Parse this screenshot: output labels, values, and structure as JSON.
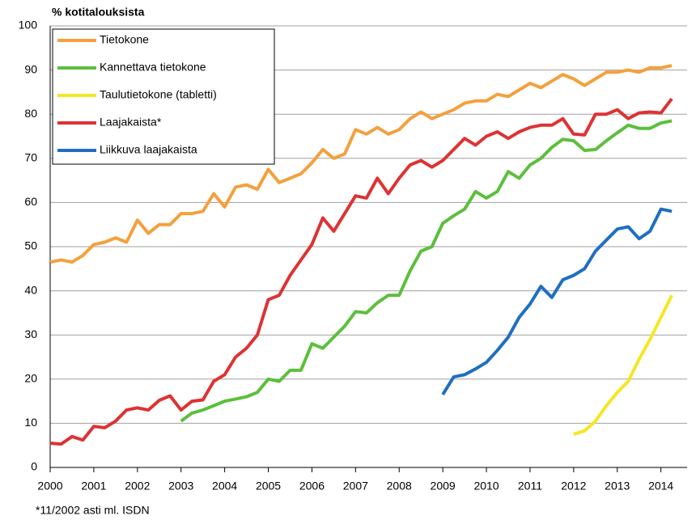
{
  "chart_data": {
    "type": "line",
    "y_label": "% kotitalouksista",
    "footnote": "*11/2002 asti ml. ISDN",
    "x": [
      2000,
      2000.25,
      2000.5,
      2000.75,
      2001,
      2001.25,
      2001.5,
      2001.75,
      2002,
      2002.25,
      2002.5,
      2002.75,
      2003,
      2003.25,
      2003.5,
      2003.75,
      2004,
      2004.25,
      2004.5,
      2004.75,
      2005,
      2005.25,
      2005.5,
      2005.75,
      2006,
      2006.25,
      2006.5,
      2006.75,
      2007,
      2007.25,
      2007.5,
      2007.75,
      2008,
      2008.25,
      2008.5,
      2008.75,
      2009,
      2009.25,
      2009.5,
      2009.75,
      2010,
      2010.25,
      2010.5,
      2010.75,
      2011,
      2011.25,
      2011.5,
      2011.75,
      2012,
      2012.25,
      2012.5,
      2012.75,
      2013,
      2013.25,
      2013.5,
      2013.75,
      2014,
      2014.25
    ],
    "series": [
      {
        "name": "Tietokone",
        "color": "#f4a03c",
        "values": [
          46.5,
          47,
          46.5,
          48,
          50.5,
          51,
          52,
          51,
          56,
          53,
          55,
          55,
          57.5,
          57.5,
          58,
          62,
          59,
          63.5,
          64,
          63,
          67.5,
          64.5,
          65.5,
          66.5,
          69,
          72,
          70,
          71,
          76.5,
          75.5,
          77,
          75.5,
          76.5,
          79,
          80.5,
          79,
          80,
          81,
          82.5,
          83,
          83,
          84.5,
          84,
          85.5,
          87,
          86,
          87.5,
          89,
          88,
          86.5,
          88,
          89.5,
          89.5,
          90,
          89.5,
          90.5,
          90.5,
          91
        ]
      },
      {
        "name": "Kannettava tietokone",
        "color": "#5cbf3c",
        "values": [
          null,
          null,
          null,
          null,
          null,
          null,
          null,
          null,
          null,
          null,
          null,
          null,
          10.5,
          12.3,
          13,
          14,
          15,
          15.5,
          16,
          17,
          20,
          19.5,
          22,
          22,
          28,
          27,
          29.5,
          32,
          35.3,
          35,
          37.3,
          39,
          39,
          44.5,
          49,
          50,
          55.3,
          57,
          58.5,
          62.5,
          61,
          62.5,
          67,
          65.5,
          68.5,
          70,
          72.5,
          74.3,
          74,
          71.8,
          72,
          74,
          75.8,
          77.5,
          76.8,
          76.8,
          78,
          78.5
        ]
      },
      {
        "name": "Taulutietokone (tabletti)",
        "color": "#f5e626",
        "values": [
          null,
          null,
          null,
          null,
          null,
          null,
          null,
          null,
          null,
          null,
          null,
          null,
          null,
          null,
          null,
          null,
          null,
          null,
          null,
          null,
          null,
          null,
          null,
          null,
          null,
          null,
          null,
          null,
          null,
          null,
          null,
          null,
          null,
          null,
          null,
          null,
          null,
          null,
          null,
          null,
          null,
          null,
          null,
          null,
          null,
          null,
          null,
          null,
          7.5,
          8.3,
          10.5,
          14,
          17,
          19.5,
          24.5,
          29,
          34,
          39
        ]
      },
      {
        "name": "Laajakaista*",
        "color": "#dd3333",
        "values": [
          5.5,
          5.3,
          7,
          6.2,
          9.3,
          9,
          10.5,
          13,
          13.5,
          13,
          15.2,
          16.2,
          13,
          15,
          15.3,
          19.5,
          21,
          25,
          27,
          30,
          38,
          39,
          43.5,
          47,
          50.5,
          56.5,
          53.5,
          57.5,
          61.5,
          61,
          65.5,
          62,
          65.5,
          68.5,
          69.5,
          68,
          69.5,
          72,
          74.5,
          73,
          75,
          76,
          74.5,
          76,
          77,
          77.5,
          77.5,
          79,
          75.5,
          75.3,
          80,
          80,
          81,
          79,
          80.3,
          80.5,
          80.3,
          83.5
        ]
      },
      {
        "name": "Liikkuva laajakaista",
        "color": "#1f6fbf",
        "values": [
          null,
          null,
          null,
          null,
          null,
          null,
          null,
          null,
          null,
          null,
          null,
          null,
          null,
          null,
          null,
          null,
          null,
          null,
          null,
          null,
          null,
          null,
          null,
          null,
          null,
          null,
          null,
          null,
          null,
          null,
          null,
          null,
          null,
          null,
          null,
          null,
          16.5,
          20.5,
          21,
          22.3,
          23.8,
          26.5,
          29.5,
          34,
          37,
          41,
          38.5,
          42.5,
          43.5,
          45,
          49,
          51.5,
          54,
          54.5,
          51.8,
          53.5,
          58.5,
          58
        ]
      }
    ],
    "xlim": [
      2000,
      2014.6
    ],
    "xticks": [
      2000,
      2001,
      2002,
      2003,
      2004,
      2005,
      2006,
      2007,
      2008,
      2009,
      2010,
      2011,
      2012,
      2013,
      2014
    ],
    "ylim": [
      0,
      100
    ],
    "yticks": [
      0,
      10,
      20,
      30,
      40,
      50,
      60,
      70,
      80,
      90,
      100
    ],
    "grid": true,
    "legend": "upper left"
  }
}
